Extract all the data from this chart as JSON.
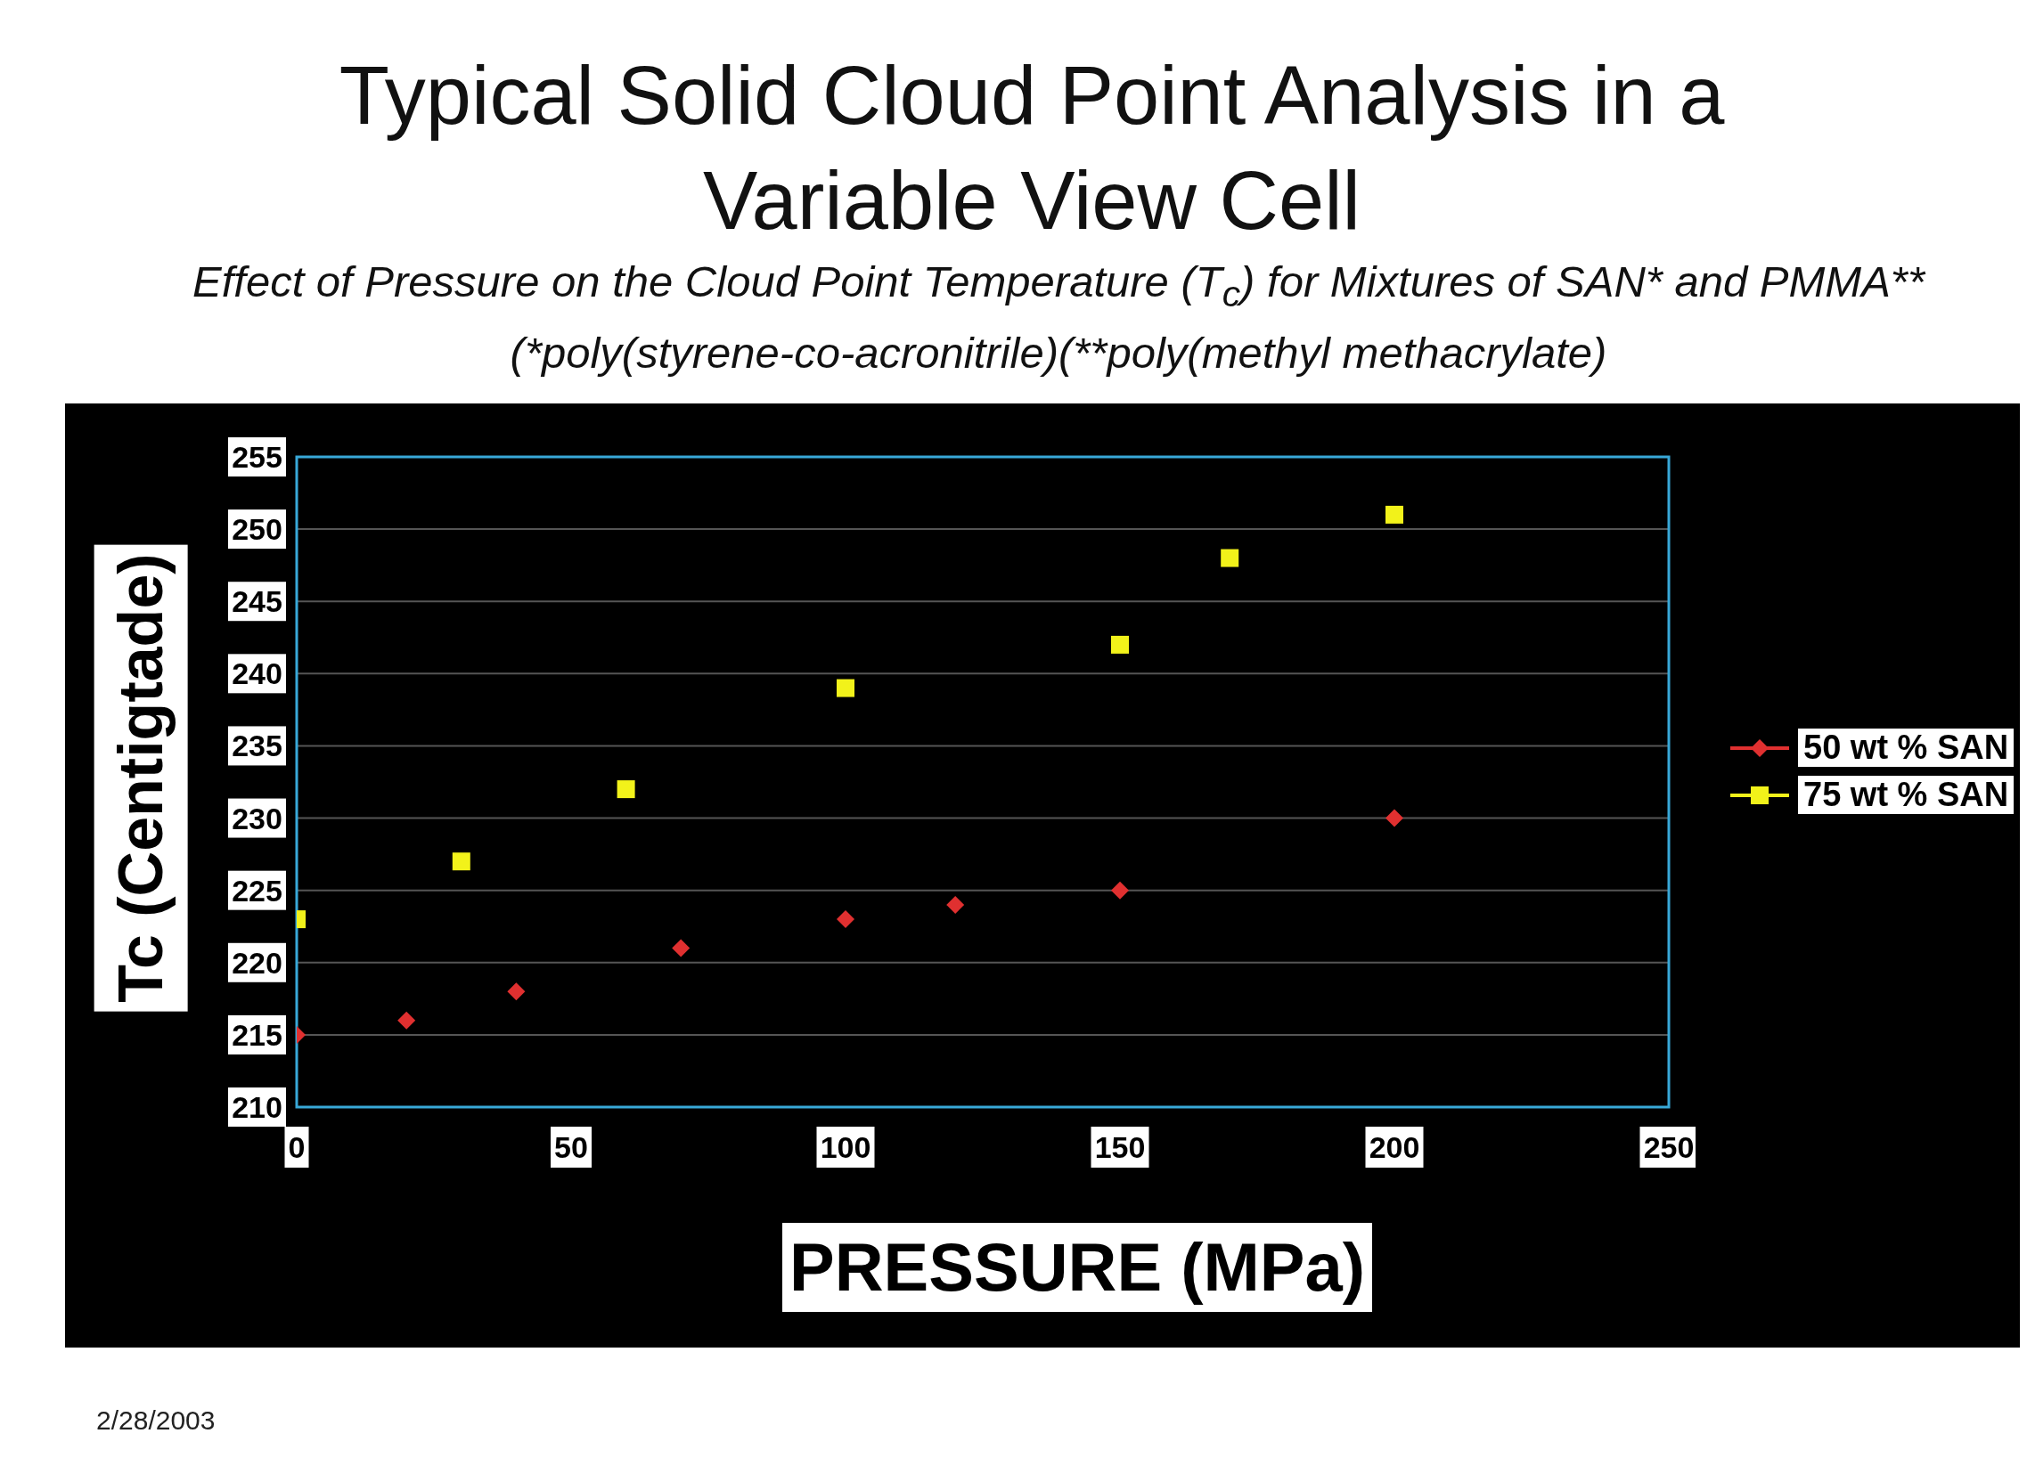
{
  "chart_data": {
    "type": "scatter",
    "title": "Typical Solid Cloud Point Analysis in a Variable View Cell",
    "subtitle": "Effect of Pressure on the Cloud Point Temperature (T$_{c}$) for Mixtures of SAN* and PMMA**  (*poly(styrene-co-acronitrile)(**poly(methyl methacrylate)",
    "xlabel": "PRESSURE (MPa)",
    "ylabel": "Tc (Centigtade)",
    "annotations": [
      "2/28/2003"
    ],
    "series": [
      {
        "name": "50 wt % SAN",
        "color": "#e03030",
        "marker": "diamond",
        "x": [
          0,
          20,
          40,
          70,
          100,
          120,
          150,
          200
        ],
        "values": [
          215,
          216,
          218,
          221,
          223,
          224,
          225,
          230
        ]
      },
      {
        "name": "75 wt % SAN",
        "color": "#f2f21a",
        "marker": "square",
        "x": [
          0,
          30,
          60,
          100,
          150,
          170,
          200
        ],
        "values": [
          223,
          227,
          232,
          239,
          242,
          248,
          251
        ]
      }
    ],
    "xlim": [
      0,
      250
    ],
    "xticks": [
      0,
      50,
      100,
      150,
      200,
      250
    ],
    "ylim": [
      210,
      255
    ],
    "yticks": [
      210,
      215,
      220,
      225,
      230,
      235,
      240,
      245,
      250,
      255
    ],
    "grid": "y",
    "legend": "right"
  }
}
